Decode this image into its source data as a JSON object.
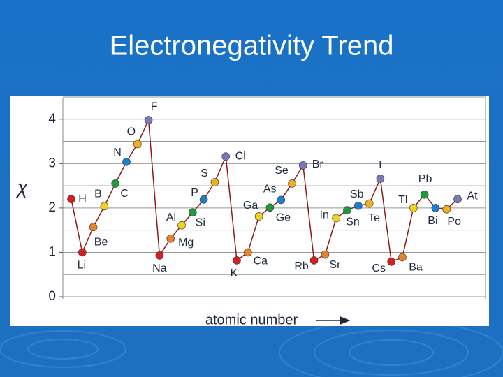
{
  "chart_data": {
    "type": "line",
    "title": "Electronegativity Trend",
    "ylabel": "χ",
    "xlabel": "atomic number",
    "categories": [
      "H",
      "Li",
      "Be",
      "B",
      "C",
      "N",
      "O",
      "F",
      "Na",
      "Mg",
      "Al",
      "Si",
      "P",
      "S",
      "Cl",
      "K",
      "Ca",
      "Ga",
      "Ge",
      "As",
      "Se",
      "Br",
      "Rb",
      "Sr",
      "In",
      "Sn",
      "Sb",
      "Te",
      "I",
      "Cs",
      "Ba",
      "Tl",
      "Pb",
      "Bi",
      "Po",
      "At"
    ],
    "values": [
      2.2,
      1.0,
      1.57,
      2.04,
      2.55,
      3.04,
      3.44,
      3.98,
      0.93,
      1.31,
      1.61,
      1.9,
      2.19,
      2.58,
      3.16,
      0.82,
      1.0,
      1.81,
      2.01,
      2.18,
      2.55,
      2.96,
      0.82,
      0.95,
      1.77,
      1.95,
      2.05,
      2.1,
      2.66,
      0.79,
      0.89,
      2.0,
      2.3,
      2.0,
      1.97,
      2.2
    ],
    "point_colors": [
      "#d42020",
      "#d42020",
      "#e8822a",
      "#f2d21c",
      "#1f9a3a",
      "#1d7fd0",
      "#f0b020",
      "#7a78b8",
      "#d42020",
      "#e8822a",
      "#f2d21c",
      "#1f9a3a",
      "#1d7fd0",
      "#f0b020",
      "#7a78b8",
      "#d42020",
      "#e8822a",
      "#f2d21c",
      "#1f9a3a",
      "#1d7fd0",
      "#f0b020",
      "#7a78b8",
      "#d42020",
      "#e8822a",
      "#f2d21c",
      "#1f9a3a",
      "#1d7fd0",
      "#f0b020",
      "#7a78b8",
      "#d42020",
      "#e8822a",
      "#f2d21c",
      "#1f9a3a",
      "#1d7fd0",
      "#f0b020",
      "#7a78b8"
    ],
    "line_color": "#8b1a1a",
    "ylim": [
      0,
      4.5
    ],
    "yticks": [
      0,
      1,
      2,
      3,
      4
    ],
    "minor_gridlines": [
      0.5,
      1.5,
      2.5,
      3.5,
      4.5
    ],
    "grid": true
  }
}
